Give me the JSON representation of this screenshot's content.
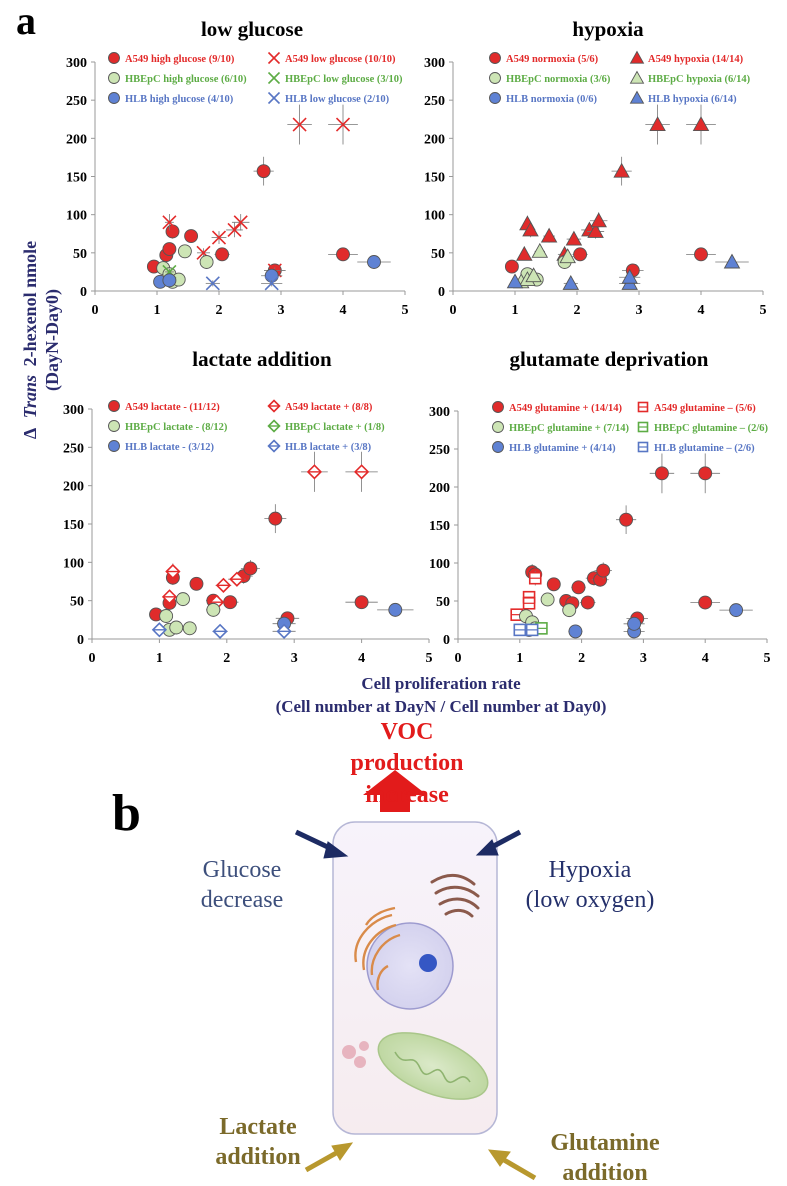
{
  "panel_a_label": "a",
  "panel_b_label": "b",
  "shared_ylabel": {
    "prefix": "Δ",
    "italic": "Trans",
    "rest": "2-hexenol nmole",
    "line2": "(DayN-Day0)"
  },
  "shared_xlabel": {
    "line1": "Cell proliferation rate",
    "line2": "(Cell number at DayN / Cell number at Day0)"
  },
  "colors": {
    "a549": "#e32a2a",
    "hbepc": "#5dac45",
    "hlb": "#5876c4",
    "a549_fill": "#e02b2b",
    "hbepc_fill": "#cde5b5",
    "hlb_fill": "#5f82d4",
    "axis_label": "#2b2c6e",
    "voc": "#e21b1b",
    "glucose": "#3d4f7c",
    "hypoxia": "#24306b",
    "lactate": "#7b6a2a",
    "gold_arrow": "#b8982e",
    "navy_arrow": "#1d2b63"
  },
  "chart_data": [
    {
      "type": "scatter",
      "title": "low glucose",
      "xlim": [
        0,
        5
      ],
      "ylim": [
        0,
        300
      ],
      "xticks": [
        "0",
        "1",
        "2",
        "3",
        "4",
        "5"
      ],
      "yticks": [
        "0",
        "50",
        "100",
        "150",
        "200",
        "250",
        "300"
      ],
      "legend": [
        {
          "label": "A549 high glucose (9/10)",
          "marker": "circle",
          "group": "a549"
        },
        {
          "label": "A549 low glucose (10/10)",
          "marker": "x",
          "group": "a549"
        },
        {
          "label": "HBEpC high glucose (6/10)",
          "marker": "circle",
          "group": "hbepc"
        },
        {
          "label": "HBEpC low glucose (3/10)",
          "marker": "x",
          "group": "hbepc"
        },
        {
          "label": "HLB high glucose (4/10)",
          "marker": "circle",
          "group": "hlb"
        },
        {
          "label": "HLB low glucose (2/10)",
          "marker": "x",
          "group": "hlb"
        }
      ],
      "series": [
        {
          "name": "A549 high glucose",
          "marker": "circle",
          "group": "a549",
          "points": [
            [
              0.95,
              32
            ],
            [
              1.15,
              47
            ],
            [
              1.2,
              55
            ],
            [
              1.25,
              78
            ],
            [
              1.55,
              72
            ],
            [
              2.05,
              48
            ],
            [
              2.72,
              157
            ],
            [
              2.9,
              27
            ],
            [
              4.0,
              48
            ]
          ]
        },
        {
          "name": "A549 low glucose",
          "marker": "x",
          "group": "a549",
          "points": [
            [
              1.2,
              90
            ],
            [
              1.75,
              50
            ],
            [
              2.0,
              70
            ],
            [
              2.25,
              80
            ],
            [
              2.35,
              90
            ],
            [
              2.9,
              27
            ],
            [
              3.3,
              218
            ],
            [
              4.0,
              218
            ]
          ]
        },
        {
          "name": "HBEpC high glucose",
          "marker": "circle",
          "group": "hbepc",
          "points": [
            [
              1.1,
              30
            ],
            [
              1.2,
              22
            ],
            [
              1.25,
              12
            ],
            [
              1.35,
              15
            ],
            [
              1.45,
              52
            ],
            [
              1.8,
              38
            ]
          ]
        },
        {
          "name": "HBEpC low glucose",
          "marker": "x",
          "group": "hbepc",
          "points": [
            [
              1.2,
              25
            ]
          ]
        },
        {
          "name": "HLB high glucose",
          "marker": "circle",
          "group": "hlb",
          "points": [
            [
              1.05,
              12
            ],
            [
              1.2,
              14
            ],
            [
              2.85,
              20
            ],
            [
              4.5,
              38
            ]
          ]
        },
        {
          "name": "HLB low glucose",
          "marker": "x",
          "group": "hlb",
          "points": [
            [
              1.9,
              10
            ],
            [
              2.85,
              10
            ]
          ]
        }
      ]
    },
    {
      "type": "scatter",
      "title": "hypoxia",
      "xlim": [
        0,
        5
      ],
      "ylim": [
        0,
        300
      ],
      "xticks": [
        "0",
        "1",
        "2",
        "3",
        "4",
        "5"
      ],
      "yticks": [
        "0",
        "50",
        "100",
        "150",
        "200",
        "250",
        "300"
      ],
      "legend": [
        {
          "label": "A549 normoxia (5/6)",
          "marker": "circle",
          "group": "a549"
        },
        {
          "label": "A549 hypoxia (14/14)",
          "marker": "triangle",
          "group": "a549"
        },
        {
          "label": "HBEpC normoxia (3/6)",
          "marker": "circle",
          "group": "hbepc"
        },
        {
          "label": "HBEpC hypoxia (6/14)",
          "marker": "triangle",
          "group": "hbepc"
        },
        {
          "label": "HLB normoxia (0/6)",
          "marker": "circle",
          "group": "hlb"
        },
        {
          "label": "HLB hypoxia (6/14)",
          "marker": "triangle",
          "group": "hlb"
        }
      ],
      "series": [
        {
          "name": "A549 normoxia",
          "marker": "circle",
          "group": "a549",
          "points": [
            [
              0.95,
              32
            ],
            [
              2.05,
              48
            ],
            [
              2.9,
              27
            ],
            [
              4.0,
              48
            ]
          ]
        },
        {
          "name": "A549 hypoxia",
          "marker": "triangle",
          "group": "a549",
          "points": [
            [
              1.15,
              48
            ],
            [
              1.2,
              88
            ],
            [
              1.25,
              80
            ],
            [
              1.55,
              72
            ],
            [
              1.8,
              48
            ],
            [
              1.95,
              68
            ],
            [
              2.2,
              80
            ],
            [
              2.3,
              78
            ],
            [
              2.35,
              92
            ],
            [
              2.72,
              157
            ],
            [
              3.3,
              218
            ],
            [
              4.0,
              218
            ]
          ]
        },
        {
          "name": "HBEpC normoxia",
          "marker": "circle",
          "group": "hbepc",
          "points": [
            [
              1.2,
              22
            ],
            [
              1.35,
              15
            ],
            [
              1.8,
              38
            ]
          ]
        },
        {
          "name": "HBEpC hypoxia",
          "marker": "triangle",
          "group": "hbepc",
          "points": [
            [
              1.1,
              12
            ],
            [
              1.2,
              15
            ],
            [
              1.3,
              20
            ],
            [
              1.4,
              52
            ],
            [
              1.85,
              45
            ]
          ]
        },
        {
          "name": "HLB hypoxia",
          "marker": "triangle",
          "group": "hlb",
          "points": [
            [
              1.0,
              12
            ],
            [
              1.9,
              10
            ],
            [
              2.85,
              10
            ],
            [
              2.85,
              18
            ],
            [
              4.5,
              38
            ]
          ]
        }
      ]
    },
    {
      "type": "scatter",
      "title": "lactate addition",
      "xlim": [
        0,
        5
      ],
      "ylim": [
        0,
        300
      ],
      "xticks": [
        "0",
        "1",
        "2",
        "3",
        "4",
        "5"
      ],
      "yticks": [
        "0",
        "50",
        "100",
        "150",
        "200",
        "250",
        "300"
      ],
      "legend": [
        {
          "label": "A549 lactate - (11/12)",
          "marker": "circle",
          "group": "a549"
        },
        {
          "label": "A549 lactate + (8/8)",
          "marker": "diamond",
          "group": "a549"
        },
        {
          "label": "HBEpC lactate - (8/12)",
          "marker": "circle",
          "group": "hbepc"
        },
        {
          "label": "HBEpC lactate + (1/8)",
          "marker": "diamond",
          "group": "hbepc"
        },
        {
          "label": "HLB lactate - (3/12)",
          "marker": "circle",
          "group": "hlb"
        },
        {
          "label": "HLB lactate + (3/8)",
          "marker": "diamond",
          "group": "hlb"
        }
      ],
      "series": [
        {
          "name": "A549 lactate -",
          "marker": "circle",
          "group": "a549",
          "points": [
            [
              0.95,
              32
            ],
            [
              1.2,
              80
            ],
            [
              1.55,
              72
            ],
            [
              1.8,
              50
            ],
            [
              2.05,
              48
            ],
            [
              2.25,
              82
            ],
            [
              2.35,
              92
            ],
            [
              2.72,
              157
            ],
            [
              2.9,
              27
            ],
            [
              4.0,
              48
            ],
            [
              1.15,
              47
            ]
          ]
        },
        {
          "name": "A549 lactate +",
          "marker": "diamond",
          "group": "a549",
          "points": [
            [
              1.15,
              55
            ],
            [
              1.2,
              88
            ],
            [
              1.85,
              48
            ],
            [
              1.95,
              70
            ],
            [
              2.15,
              78
            ],
            [
              3.3,
              218
            ],
            [
              4.0,
              218
            ]
          ]
        },
        {
          "name": "HBEpC lactate -",
          "marker": "circle",
          "group": "hbepc",
          "points": [
            [
              1.1,
              30
            ],
            [
              1.15,
              12
            ],
            [
              1.25,
              15
            ],
            [
              1.35,
              52
            ],
            [
              1.45,
              14
            ],
            [
              1.8,
              38
            ]
          ]
        },
        {
          "name": "HLB lactate -",
          "marker": "circle",
          "group": "hlb",
          "points": [
            [
              2.85,
              20
            ],
            [
              4.5,
              38
            ]
          ]
        },
        {
          "name": "HLB lactate +",
          "marker": "diamond",
          "group": "hlb",
          "points": [
            [
              1.0,
              12
            ],
            [
              1.9,
              10
            ],
            [
              2.85,
              10
            ]
          ]
        }
      ]
    },
    {
      "type": "scatter",
      "title": "glutamate deprivation",
      "xlim": [
        0,
        5
      ],
      "ylim": [
        0,
        300
      ],
      "xticks": [
        "0",
        "1",
        "2",
        "3",
        "4",
        "5"
      ],
      "yticks": [
        "0",
        "50",
        "100",
        "150",
        "200",
        "250",
        "300"
      ],
      "legend": [
        {
          "label": "A549 glutamine + (14/14)",
          "marker": "circle",
          "group": "a549"
        },
        {
          "label": "A549 glutamine – (5/6)",
          "marker": "square",
          "group": "a549"
        },
        {
          "label": "HBEpC glutamine + (7/14)",
          "marker": "circle",
          "group": "hbepc"
        },
        {
          "label": "HBEpC glutamine – (2/6)",
          "marker": "square",
          "group": "hbepc"
        },
        {
          "label": "HLB glutamine + (4/14)",
          "marker": "circle",
          "group": "hlb"
        },
        {
          "label": "HLB glutamine – (2/6)",
          "marker": "square",
          "group": "hlb"
        }
      ],
      "series": [
        {
          "name": "A549 glutamine +",
          "marker": "circle",
          "group": "a549",
          "points": [
            [
              1.2,
              88
            ],
            [
              1.25,
              85
            ],
            [
              1.55,
              72
            ],
            [
              1.75,
              50
            ],
            [
              1.85,
              47
            ],
            [
              1.95,
              68
            ],
            [
              2.1,
              48
            ],
            [
              2.2,
              80
            ],
            [
              2.3,
              78
            ],
            [
              2.35,
              90
            ],
            [
              2.72,
              157
            ],
            [
              2.9,
              27
            ],
            [
              3.3,
              218
            ],
            [
              4.0,
              218
            ],
            [
              4.0,
              48
            ]
          ]
        },
        {
          "name": "A549 glutamine –",
          "marker": "square",
          "group": "a549",
          "points": [
            [
              0.95,
              32
            ],
            [
              1.15,
              55
            ],
            [
              1.15,
              47
            ],
            [
              1.25,
              80
            ]
          ]
        },
        {
          "name": "HBEpC glutamine +",
          "marker": "circle",
          "group": "hbepc",
          "points": [
            [
              1.1,
              30
            ],
            [
              1.15,
              12
            ],
            [
              1.2,
              22
            ],
            [
              1.25,
              14
            ],
            [
              1.45,
              52
            ],
            [
              1.8,
              38
            ]
          ]
        },
        {
          "name": "HBEpC glutamine –",
          "marker": "square",
          "group": "hbepc",
          "points": [
            [
              1.35,
              14
            ]
          ]
        },
        {
          "name": "HLB glutamine +",
          "marker": "circle",
          "group": "hlb",
          "points": [
            [
              1.9,
              10
            ],
            [
              2.85,
              10
            ],
            [
              2.85,
              20
            ],
            [
              4.5,
              38
            ]
          ]
        },
        {
          "name": "HLB glutamine –",
          "marker": "square",
          "group": "hlb",
          "points": [
            [
              1.0,
              12
            ],
            [
              1.2,
              12
            ]
          ]
        }
      ]
    }
  ],
  "diagram_b": {
    "top_label": [
      "VOC",
      "production",
      "increase"
    ],
    "glucose_label": [
      "Glucose",
      "decrease"
    ],
    "hypoxia_label": [
      "Hypoxia",
      "(low oxygen)"
    ],
    "lactate_label": [
      "Lactate",
      "addition"
    ],
    "glutamine_label": [
      "Glutamine",
      "addition"
    ]
  }
}
